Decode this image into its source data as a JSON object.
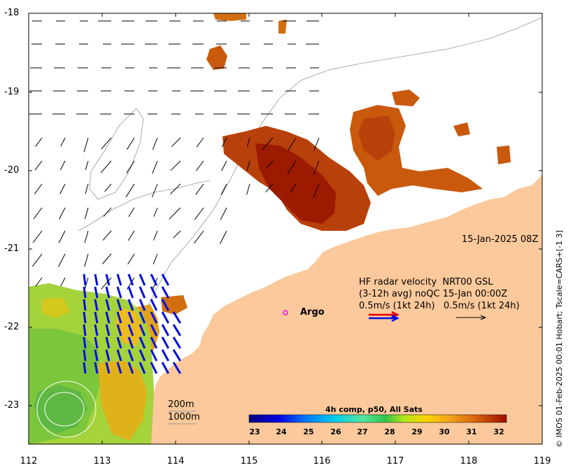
{
  "map": {
    "lon_ticks": [
      "112",
      "113",
      "114",
      "115",
      "116",
      "117",
      "118",
      "119"
    ],
    "lat_ticks": [
      "-18",
      "-19",
      "-20",
      "-21",
      "-22",
      "-23"
    ],
    "timestamp": "15-Jan-2025 08Z",
    "credit": "© IMOS 01-Feb-2025 00:01 Hobart; Tscale=CARS+[-1 3]",
    "argo_label": "Argo",
    "isobath_200": "200m",
    "isobath_1000": "1000m",
    "land_color": "#fbc99b"
  },
  "radar_legend": {
    "line1": "HF radar velocity  NRT00 GSL",
    "line2": "(3-12h avg) noQC 15-Jan 00:00Z",
    "line3": "0.5m/s (1kt 24h)   0.5m/s (1kt 24h)"
  },
  "colorbar": {
    "title": "4h comp, p50, All Sats",
    "ticks": [
      "23",
      "24",
      "25",
      "26",
      "27",
      "28",
      "29",
      "30",
      "31",
      "32"
    ],
    "range": [
      23,
      32.5
    ]
  }
}
